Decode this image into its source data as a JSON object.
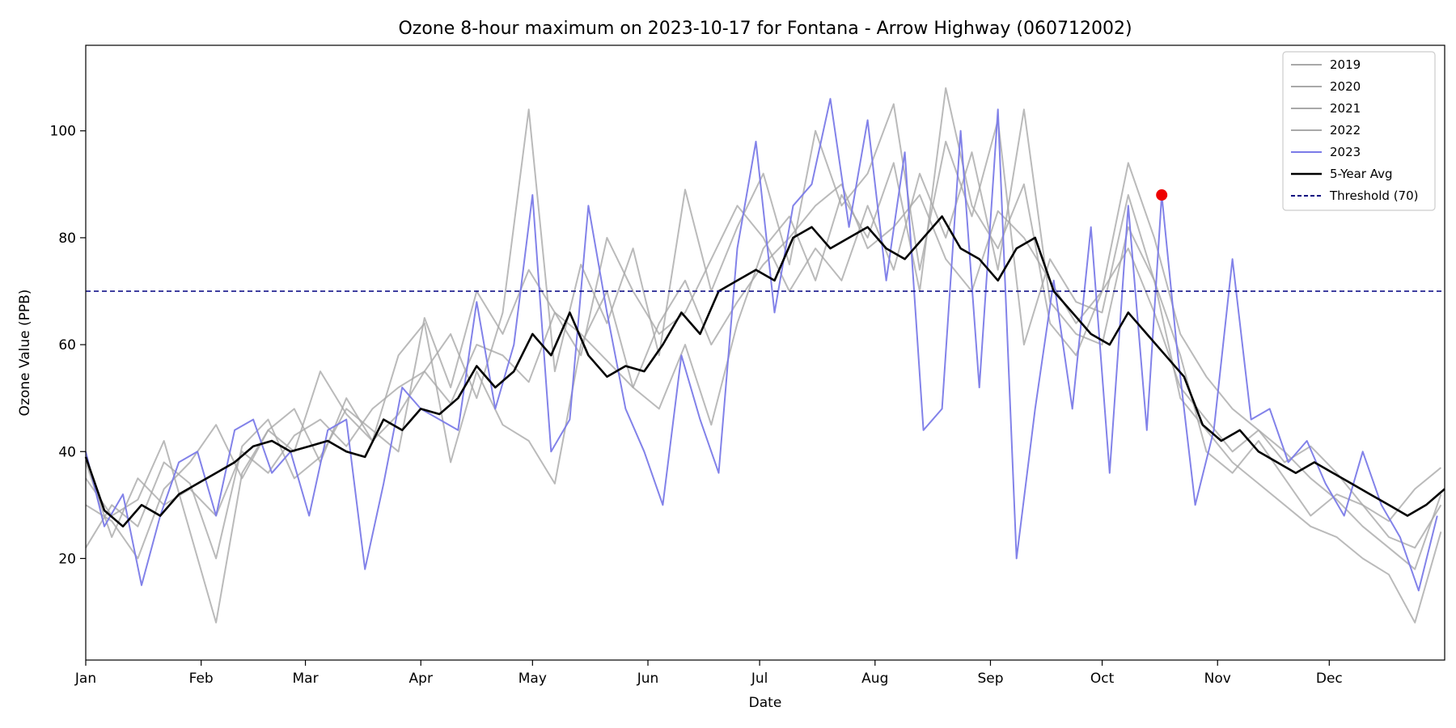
{
  "chart_data": {
    "type": "line",
    "title": "Ozone 8-hour maximum on 2023-10-17 for Fontana - Arrow Highway (060712002)",
    "xlabel": "Date",
    "ylabel": "Ozone Value (PPB)",
    "x_unit": "day-of-year",
    "xlim": [
      1,
      366
    ],
    "ylim": [
      1,
      116
    ],
    "x_ticks": [
      {
        "label": "Jan",
        "x": 1
      },
      {
        "label": "Feb",
        "x": 32
      },
      {
        "label": "Mar",
        "x": 60
      },
      {
        "label": "Apr",
        "x": 91
      },
      {
        "label": "May",
        "x": 121
      },
      {
        "label": "Jun",
        "x": 152
      },
      {
        "label": "Jul",
        "x": 182
      },
      {
        "label": "Aug",
        "x": 213
      },
      {
        "label": "Sep",
        "x": 244
      },
      {
        "label": "Oct",
        "x": 274
      },
      {
        "label": "Nov",
        "x": 305
      },
      {
        "label": "Dec",
        "x": 335
      }
    ],
    "y_ticks": [
      20,
      40,
      60,
      80,
      100
    ],
    "grid": false,
    "legend_position": "top-right",
    "threshold": {
      "name": "Threshold (70)",
      "value": 70,
      "color": "#000080",
      "style": "dashed"
    },
    "highlight_point": {
      "date": "2023-10-17",
      "x": 290,
      "y": 88,
      "color": "#ee0000"
    },
    "series": [
      {
        "name": "2019",
        "color": "#a9a9a9",
        "x": [
          1,
          8,
          15,
          22,
          29,
          36,
          43,
          50,
          57,
          64,
          71,
          78,
          85,
          92,
          99,
          106,
          113,
          120,
          127,
          134,
          141,
          148,
          155,
          162,
          169,
          176,
          183,
          190,
          197,
          204,
          211,
          218,
          225,
          232,
          239,
          246,
          253,
          260,
          267,
          274,
          281,
          288,
          295,
          302,
          309,
          316,
          323,
          330,
          337,
          344,
          351,
          358,
          365
        ],
        "y": [
          38,
          24,
          35,
          30,
          33,
          28,
          40,
          36,
          43,
          46,
          41,
          48,
          52,
          55,
          49,
          60,
          58,
          53,
          66,
          62,
          57,
          52,
          64,
          72,
          60,
          68,
          75,
          80,
          86,
          90,
          78,
          82,
          88,
          76,
          70,
          85,
          80,
          72,
          64,
          70,
          78,
          66,
          52,
          46,
          40,
          44,
          38,
          41,
          36,
          30,
          27,
          33,
          37
        ]
      },
      {
        "name": "2020",
        "color": "#a9a9a9",
        "x": [
          1,
          8,
          15,
          22,
          29,
          36,
          43,
          50,
          57,
          64,
          71,
          78,
          85,
          92,
          99,
          106,
          113,
          120,
          127,
          134,
          141,
          148,
          155,
          162,
          169,
          176,
          183,
          190,
          197,
          204,
          211,
          218,
          225,
          232,
          239,
          246,
          253,
          260,
          267,
          274,
          281,
          288,
          295,
          302,
          309,
          316,
          323,
          330,
          337,
          344,
          351,
          358,
          365
        ],
        "y": [
          30,
          27,
          20,
          33,
          38,
          45,
          35,
          44,
          48,
          38,
          50,
          42,
          47,
          55,
          62,
          50,
          66,
          104,
          55,
          75,
          64,
          78,
          58,
          89,
          70,
          82,
          92,
          75,
          100,
          86,
          92,
          105,
          74,
          98,
          84,
          102,
          60,
          76,
          68,
          66,
          88,
          72,
          58,
          40,
          36,
          42,
          35,
          28,
          32,
          30,
          24,
          22,
          30
        ]
      },
      {
        "name": "2021",
        "color": "#a9a9a9",
        "x": [
          1,
          8,
          15,
          22,
          29,
          36,
          43,
          50,
          57,
          64,
          71,
          78,
          85,
          92,
          99,
          106,
          113,
          120,
          127,
          134,
          141,
          148,
          155,
          162,
          169,
          176,
          183,
          190,
          197,
          204,
          211,
          218,
          225,
          232,
          239,
          246,
          253,
          260,
          267,
          274,
          281,
          288,
          295,
          302,
          309,
          316,
          323,
          330,
          337,
          344,
          351,
          358,
          365
        ],
        "y": [
          22,
          30,
          26,
          38,
          34,
          20,
          41,
          46,
          35,
          39,
          48,
          44,
          40,
          65,
          52,
          70,
          62,
          74,
          66,
          58,
          80,
          70,
          62,
          66,
          76,
          86,
          80,
          70,
          78,
          72,
          86,
          74,
          92,
          80,
          96,
          74,
          104,
          68,
          62,
          60,
          82,
          72,
          50,
          44,
          38,
          34,
          30,
          26,
          24,
          20,
          17,
          8,
          25
        ]
      },
      {
        "name": "2022",
        "color": "#a9a9a9",
        "x": [
          1,
          8,
          15,
          22,
          29,
          36,
          43,
          50,
          57,
          64,
          71,
          78,
          85,
          92,
          99,
          106,
          113,
          120,
          127,
          134,
          141,
          148,
          155,
          162,
          169,
          176,
          183,
          190,
          197,
          204,
          211,
          218,
          225,
          232,
          239,
          246,
          253,
          260,
          267,
          274,
          281,
          288,
          295,
          302,
          309,
          316,
          323,
          330,
          337,
          344,
          351,
          358,
          365
        ],
        "y": [
          35,
          28,
          31,
          42,
          25,
          8,
          36,
          44,
          40,
          55,
          47,
          42,
          58,
          64,
          38,
          55,
          45,
          42,
          34,
          60,
          70,
          52,
          48,
          60,
          45,
          64,
          78,
          84,
          72,
          88,
          80,
          94,
          70,
          108,
          86,
          78,
          90,
          64,
          58,
          70,
          94,
          80,
          62,
          54,
          48,
          44,
          40,
          35,
          31,
          26,
          22,
          18,
          32
        ]
      },
      {
        "name": "2023",
        "color": "#7b7be8",
        "x": [
          1,
          6,
          11,
          16,
          21,
          26,
          31,
          36,
          41,
          46,
          51,
          56,
          61,
          66,
          71,
          76,
          81,
          86,
          91,
          96,
          101,
          106,
          111,
          116,
          121,
          126,
          131,
          136,
          141,
          146,
          151,
          156,
          161,
          166,
          171,
          176,
          181,
          186,
          191,
          196,
          201,
          206,
          211,
          216,
          221,
          226,
          231,
          236,
          241,
          246,
          251,
          256,
          261,
          266,
          271,
          276,
          281,
          286,
          290,
          294,
          299,
          304,
          309,
          314,
          319,
          324,
          329,
          334,
          339,
          344,
          349,
          354,
          359,
          364
        ],
        "y": [
          40,
          26,
          32,
          15,
          28,
          38,
          40,
          28,
          44,
          46,
          36,
          40,
          28,
          44,
          46,
          18,
          34,
          52,
          48,
          46,
          44,
          68,
          48,
          60,
          88,
          40,
          46,
          86,
          66,
          48,
          40,
          30,
          58,
          46,
          36,
          78,
          98,
          66,
          86,
          90,
          106,
          82,
          102,
          72,
          96,
          44,
          48,
          100,
          52,
          104,
          20,
          48,
          72,
          48,
          82,
          36,
          86,
          44,
          88,
          60,
          30,
          44,
          76,
          46,
          48,
          38,
          42,
          34,
          28,
          40,
          30,
          24,
          14,
          28
        ]
      },
      {
        "name": "5-Year Avg",
        "color": "#000000",
        "x": [
          1,
          6,
          11,
          16,
          21,
          26,
          31,
          36,
          41,
          46,
          51,
          56,
          61,
          66,
          71,
          76,
          81,
          86,
          91,
          96,
          101,
          106,
          111,
          116,
          121,
          126,
          131,
          136,
          141,
          146,
          151,
          156,
          161,
          166,
          171,
          176,
          181,
          186,
          191,
          196,
          201,
          206,
          211,
          216,
          221,
          226,
          231,
          236,
          241,
          246,
          251,
          256,
          261,
          266,
          271,
          276,
          281,
          286,
          291,
          296,
          301,
          306,
          311,
          316,
          321,
          326,
          331,
          336,
          341,
          346,
          351,
          356,
          361,
          366
        ],
        "y": [
          39,
          29,
          26,
          30,
          28,
          32,
          34,
          36,
          38,
          41,
          42,
          40,
          41,
          42,
          40,
          39,
          46,
          44,
          48,
          47,
          50,
          56,
          52,
          55,
          62,
          58,
          66,
          58,
          54,
          56,
          55,
          60,
          66,
          62,
          70,
          72,
          74,
          72,
          80,
          82,
          78,
          80,
          82,
          78,
          76,
          80,
          84,
          78,
          76,
          72,
          78,
          80,
          70,
          66,
          62,
          60,
          66,
          62,
          58,
          54,
          45,
          42,
          44,
          40,
          38,
          36,
          38,
          36,
          34,
          32,
          30,
          28,
          30,
          33
        ]
      }
    ]
  },
  "legend": [
    {
      "label": "2019",
      "color": "#a9a9a9",
      "style": "solid"
    },
    {
      "label": "2020",
      "color": "#a9a9a9",
      "style": "solid"
    },
    {
      "label": "2021",
      "color": "#a9a9a9",
      "style": "solid"
    },
    {
      "label": "2022",
      "color": "#a9a9a9",
      "style": "solid"
    },
    {
      "label": "2023",
      "color": "#7b7be8",
      "style": "solid"
    },
    {
      "label": "5-Year Avg",
      "color": "#000000",
      "style": "solid"
    },
    {
      "label": "Threshold (70)",
      "color": "#000080",
      "style": "dashed"
    }
  ]
}
